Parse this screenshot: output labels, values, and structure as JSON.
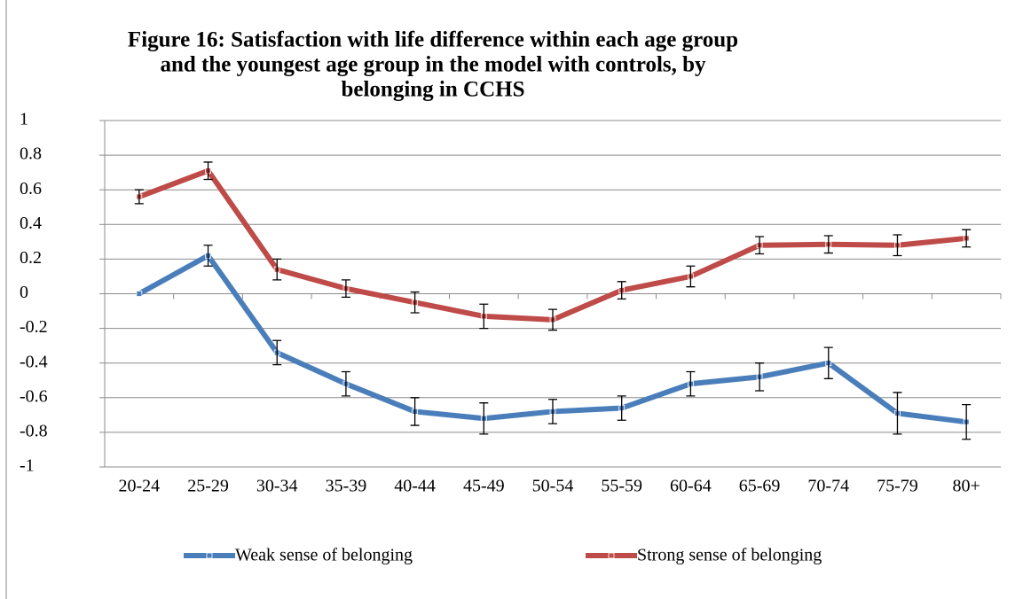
{
  "chart_data": {
    "type": "line",
    "title_lines": [
      "Figure 16: Satisfaction with life difference within each age group",
      "and the youngest age group in the model with controls, by",
      "belonging in CCHS"
    ],
    "categories": [
      "20-24",
      "25-29",
      "30-34",
      "35-39",
      "40-44",
      "45-49",
      "50-54",
      "55-59",
      "60-64",
      "65-69",
      "70-74",
      "75-79",
      "80+"
    ],
    "series": [
      {
        "name": "Weak sense of belonging",
        "color": "#4a7ebb",
        "values": [
          0,
          0.22,
          -0.34,
          -0.52,
          -0.68,
          -0.72,
          -0.68,
          -0.66,
          -0.52,
          -0.48,
          -0.4,
          -0.69,
          -0.74
        ],
        "errors": [
          null,
          0.06,
          0.07,
          0.07,
          0.08,
          0.09,
          0.07,
          0.07,
          0.07,
          0.08,
          0.09,
          0.12,
          0.1
        ]
      },
      {
        "name": "Strong sense of belonging",
        "color": "#be4b48",
        "values": [
          0.56,
          0.71,
          0.14,
          0.03,
          -0.05,
          -0.13,
          -0.15,
          0.02,
          0.1,
          0.28,
          0.285,
          0.28,
          0.32
        ],
        "errors": [
          0.04,
          0.05,
          0.06,
          0.05,
          0.06,
          0.07,
          0.06,
          0.05,
          0.06,
          0.05,
          0.05,
          0.06,
          0.05
        ]
      }
    ],
    "ylim": [
      -1,
      1
    ],
    "yticks": [
      -1,
      -0.8,
      -0.6,
      -0.4,
      -0.2,
      0,
      0.2,
      0.4,
      0.6,
      0.8,
      1
    ],
    "grid": true,
    "legend": "bottom"
  }
}
